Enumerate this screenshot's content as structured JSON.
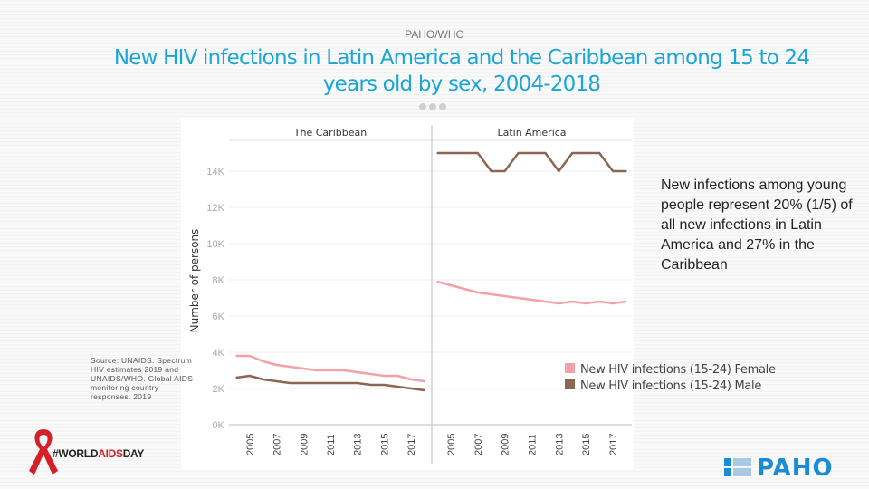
{
  "header": {
    "org": "PAHO/WHO",
    "title": "New HIV infections in Latin America and the Caribbean among 15 to 24 years old by sex, 2004-2018"
  },
  "note": "New infections among young people represent 20%  (1/5) of all new infections in Latin America and 27% in the Caribbean",
  "source": "Source: UNAIDS. Spectrum HIV estimates 2019 and UNAIDS/WHO. Global AIDS monitoring country responses. 2019",
  "branding": {
    "world_aids_day_prefix": "#WORLD",
    "world_aids_day_mid": "AIDS",
    "world_aids_day_suffix": "DAY",
    "paho": "PAHO"
  },
  "chart_data": {
    "type": "line",
    "ylabel": "Number of persons",
    "ylim": [
      0,
      15000
    ],
    "yticks": [
      "0K",
      "2K",
      "4K",
      "6K",
      "8K",
      "10K",
      "12K",
      "14K"
    ],
    "ytick_values": [
      0,
      2000,
      4000,
      6000,
      8000,
      10000,
      12000,
      14000
    ],
    "grid": true,
    "legend_position": "right",
    "x": [
      2004,
      2005,
      2006,
      2007,
      2008,
      2009,
      2010,
      2011,
      2012,
      2013,
      2014,
      2015,
      2016,
      2017,
      2018
    ],
    "xticks": [
      2005,
      2007,
      2009,
      2011,
      2013,
      2015,
      2017
    ],
    "colors": {
      "female": "#f4a0a8",
      "male": "#8c6650"
    },
    "legend": [
      "New HIV infections (15-24) Female",
      "New HIV infections (15-24) Male"
    ],
    "panels": [
      {
        "name": "The Caribbean",
        "series": [
          {
            "name": "New HIV infections (15-24) Female",
            "values": [
              3800,
              3800,
              3500,
              3300,
              3200,
              3100,
              3000,
              3000,
              3000,
              2900,
              2800,
              2700,
              2700,
              2500,
              2400
            ]
          },
          {
            "name": "New HIV infections (15-24) Male",
            "values": [
              2600,
              2700,
              2500,
              2400,
              2300,
              2300,
              2300,
              2300,
              2300,
              2300,
              2200,
              2200,
              2100,
              2000,
              1900
            ]
          }
        ]
      },
      {
        "name": "Latin America",
        "series": [
          {
            "name": "New HIV infections (15-24) Female",
            "values": [
              7900,
              7700,
              7500,
              7300,
              7200,
              7100,
              7000,
              6900,
              6800,
              6700,
              6800,
              6700,
              6800,
              6700,
              6800
            ]
          },
          {
            "name": "New HIV infections (15-24) Male",
            "values": [
              15000,
              15000,
              15000,
              15000,
              14000,
              14000,
              15000,
              15000,
              15000,
              14000,
              15000,
              15000,
              15000,
              14000,
              14000
            ]
          }
        ]
      }
    ]
  }
}
